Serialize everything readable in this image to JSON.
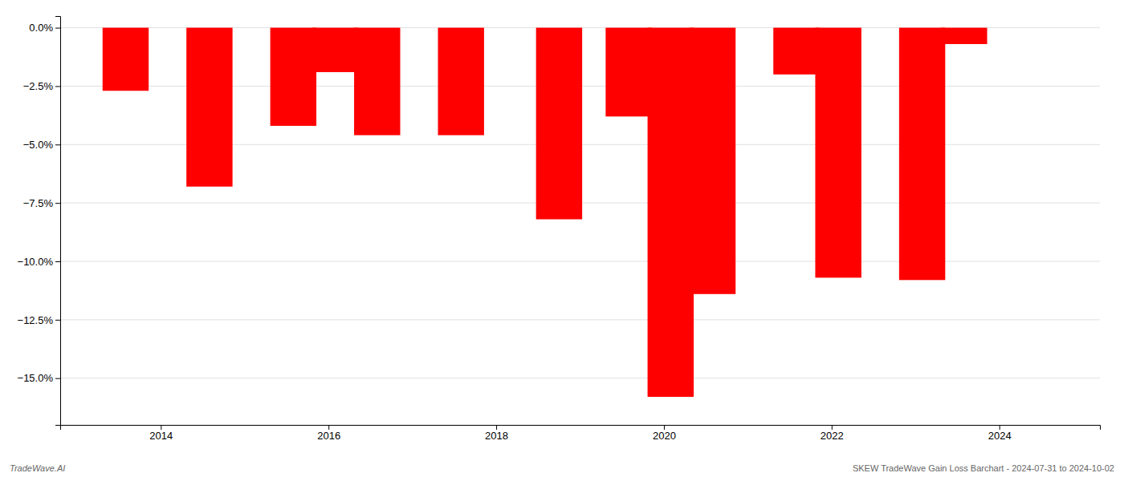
{
  "chart_data": {
    "type": "bar",
    "x": [
      2013.58,
      2014.58,
      2015.58,
      2016.08,
      2016.58,
      2017.58,
      2018.75,
      2019.58,
      2020.08,
      2020.58,
      2021.58,
      2022.08,
      2023.08,
      2023.58
    ],
    "values": [
      -0.027,
      -0.068,
      -0.042,
      -0.019,
      -0.046,
      -0.046,
      -0.082,
      -0.038,
      -0.158,
      -0.114,
      -0.02,
      -0.107,
      -0.108,
      -0.007
    ],
    "color": "#ff0000",
    "xlim": [
      2012.8,
      2025.2
    ],
    "xticks": [
      2014,
      2016,
      2018,
      2020,
      2022,
      2024
    ],
    "ylim": [
      -0.17,
      0.005
    ],
    "yticks": [
      {
        "value": 0.0,
        "label": "0.0%"
      },
      {
        "value": -0.025,
        "label": "−2.5%"
      },
      {
        "value": -0.05,
        "label": "−5.0%"
      },
      {
        "value": -0.075,
        "label": "−7.5%"
      },
      {
        "value": -0.1,
        "label": "−10.0%"
      },
      {
        "value": -0.125,
        "label": "−12.5%"
      },
      {
        "value": -0.15,
        "label": "−15.0%"
      }
    ],
    "grid": true,
    "annotations": [
      "TradeWave.AI",
      "SKEW TradeWave Gain Loss Barchart - 2024-07-31 to 2024-10-02"
    ]
  }
}
